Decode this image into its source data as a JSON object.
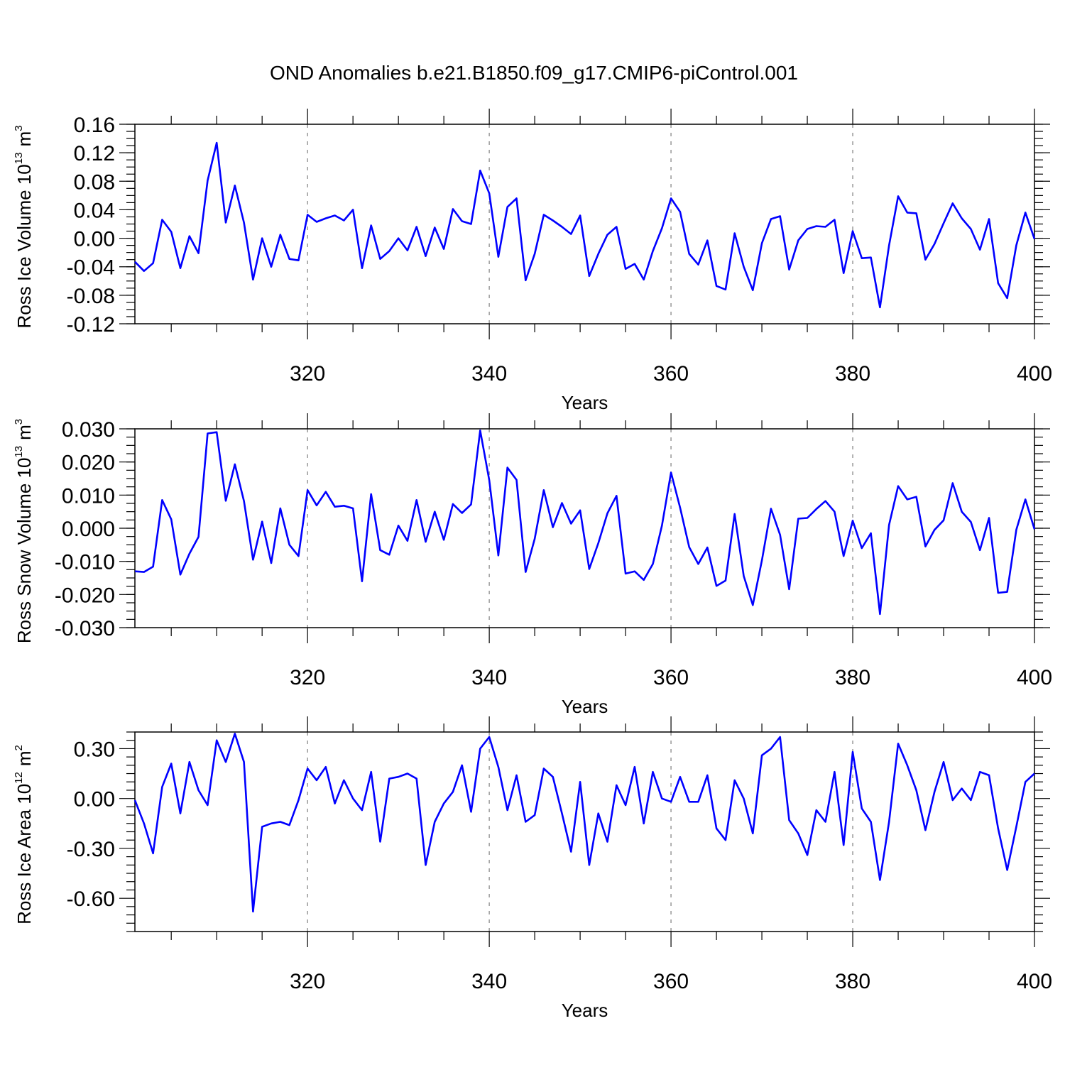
{
  "figure": {
    "title": "OND Anomalies b.e21.B1850.f09_g17.CMIP6-piControl.001",
    "line_color": "#0000ff"
  },
  "chart_data": [
    {
      "type": "line",
      "ylabel": "Ross Ice Volume 10",
      "ylabel_exp": "13",
      "ylabel_unit": "m",
      "ylabel_unit_exp": "3",
      "xlabel": "Years",
      "xlim": [
        301,
        400
      ],
      "ylim": [
        -0.12,
        0.16
      ],
      "yticks": [
        -0.12,
        -0.08,
        -0.04,
        0.0,
        0.04,
        0.08,
        0.12,
        0.16
      ],
      "ytick_labels": [
        "-0.12",
        "-0.08",
        "-0.04",
        "0.00",
        "0.04",
        "0.08",
        "0.12",
        "0.16"
      ],
      "xticks": [
        320,
        340,
        360,
        380,
        400
      ],
      "xtick_labels": [
        "320",
        "340",
        "360",
        "380",
        "400"
      ],
      "grid_x": [
        320,
        340,
        360,
        380
      ],
      "x_start": 301,
      "series": [
        {
          "name": "Ross Ice Volume",
          "values": [
            -0.033,
            -0.046,
            -0.035,
            0.026,
            0.009,
            -0.042,
            0.003,
            -0.021,
            0.081,
            0.134,
            0.022,
            0.074,
            0.022,
            -0.058,
            0.0,
            -0.04,
            0.005,
            -0.029,
            -0.031,
            0.033,
            0.023,
            0.028,
            0.032,
            0.025,
            0.04,
            -0.042,
            0.018,
            -0.029,
            -0.018,
            0.0,
            -0.017,
            0.016,
            -0.025,
            0.015,
            -0.015,
            0.041,
            0.024,
            0.02,
            0.095,
            0.063,
            -0.026,
            0.044,
            0.056,
            -0.059,
            -0.022,
            0.033,
            0.025,
            0.016,
            0.006,
            0.032,
            -0.053,
            -0.022,
            0.005,
            0.016,
            -0.043,
            -0.036,
            -0.058,
            -0.018,
            0.014,
            0.056,
            0.037,
            -0.022,
            -0.037,
            -0.003,
            -0.067,
            -0.072,
            0.007,
            -0.04,
            -0.073,
            -0.007,
            0.027,
            0.031,
            -0.044,
            -0.003,
            0.013,
            0.017,
            0.016,
            0.026,
            -0.049,
            0.01,
            -0.028,
            -0.027,
            -0.097,
            -0.01,
            0.059,
            0.036,
            0.035,
            -0.03,
            -0.008,
            0.021,
            0.049,
            0.028,
            0.013,
            -0.016,
            0.027,
            -0.063,
            -0.084,
            -0.01,
            0.036,
            -0.001
          ]
        }
      ]
    },
    {
      "type": "line",
      "ylabel": "Ross Snow Volume 10",
      "ylabel_exp": "13",
      "ylabel_unit": "m",
      "ylabel_unit_exp": "3",
      "xlabel": "Years",
      "xlim": [
        301,
        400
      ],
      "ylim": [
        -0.03,
        0.03
      ],
      "yticks": [
        -0.03,
        -0.02,
        -0.01,
        0.0,
        0.01,
        0.02,
        0.03
      ],
      "ytick_labels": [
        "-0.030",
        "-0.020",
        "-0.010",
        "0.000",
        "0.010",
        "0.020",
        "0.030"
      ],
      "xticks": [
        320,
        340,
        360,
        380,
        400
      ],
      "xtick_labels": [
        "320",
        "340",
        "360",
        "380",
        "400"
      ],
      "grid_x": [
        320,
        340,
        360,
        380
      ],
      "x_start": 301,
      "series": [
        {
          "name": "Ross Snow Volume",
          "values": [
            -0.013,
            -0.0132,
            -0.0116,
            0.0085,
            0.0027,
            -0.014,
            -0.0077,
            -0.0026,
            0.0286,
            0.029,
            0.0083,
            0.0193,
            0.0082,
            -0.0095,
            0.002,
            -0.0105,
            0.006,
            -0.005,
            -0.0084,
            0.0115,
            0.0069,
            0.011,
            0.0065,
            0.0068,
            0.006,
            -0.016,
            0.0103,
            -0.0066,
            -0.008,
            0.0008,
            -0.0038,
            0.0085,
            -0.0041,
            0.005,
            -0.0035,
            0.0073,
            0.0046,
            0.0072,
            0.0295,
            0.0145,
            -0.0082,
            0.0183,
            0.0146,
            -0.0132,
            -0.0032,
            0.0115,
            0.0003,
            0.0076,
            0.0014,
            0.0054,
            -0.0123,
            -0.0045,
            0.0045,
            0.0098,
            -0.0137,
            -0.013,
            -0.0156,
            -0.0108,
            0.0008,
            0.0168,
            0.0062,
            -0.0057,
            -0.0108,
            -0.0058,
            -0.0174,
            -0.0158,
            0.0043,
            -0.0144,
            -0.0232,
            -0.0097,
            0.0059,
            -0.002,
            -0.0184,
            0.0029,
            0.0031,
            0.0058,
            0.0082,
            0.005,
            -0.0084,
            0.0023,
            -0.006,
            -0.0015,
            -0.0259,
            0.001,
            0.0127,
            0.0087,
            0.0095,
            -0.0055,
            -0.0005,
            0.0024,
            0.0136,
            0.005,
            0.0019,
            -0.0066,
            0.0031,
            -0.0195,
            -0.0192,
            -0.0005,
            0.0087,
            -0.0003
          ]
        }
      ]
    },
    {
      "type": "line",
      "ylabel": "Ross Ice Area 10",
      "ylabel_exp": "12",
      "ylabel_unit": "m",
      "ylabel_unit_exp": "2",
      "xlabel": "Years",
      "xlim": [
        301,
        400
      ],
      "ylim": [
        -0.8,
        0.4
      ],
      "yticks": [
        -0.6,
        -0.3,
        0.0,
        0.3
      ],
      "ytick_labels": [
        "-0.60",
        "-0.30",
        "0.00",
        "0.30"
      ],
      "minor_yticks": [
        -0.8,
        -0.75,
        -0.7,
        -0.65,
        -0.55,
        -0.5,
        -0.45,
        -0.4,
        -0.35,
        -0.25,
        -0.2,
        -0.15,
        -0.1,
        -0.05,
        0.05,
        0.1,
        0.15,
        0.2,
        0.25,
        0.35,
        0.4
      ],
      "xticks": [
        320,
        340,
        360,
        380,
        400
      ],
      "xtick_labels": [
        "320",
        "340",
        "360",
        "380",
        "400"
      ],
      "grid_x": [
        320,
        340,
        360,
        380
      ],
      "x_start": 301,
      "series": [
        {
          "name": "Ross Ice Area",
          "values": [
            -0.01,
            -0.15,
            -0.33,
            0.07,
            0.21,
            -0.09,
            0.22,
            0.05,
            -0.04,
            0.35,
            0.22,
            0.39,
            0.22,
            -0.68,
            -0.17,
            -0.15,
            -0.14,
            -0.16,
            -0.01,
            0.18,
            0.11,
            0.19,
            -0.03,
            0.11,
            0.0,
            -0.07,
            0.16,
            -0.26,
            0.12,
            0.13,
            0.15,
            0.12,
            -0.4,
            -0.14,
            -0.03,
            0.04,
            0.2,
            -0.08,
            0.3,
            0.37,
            0.19,
            -0.07,
            0.14,
            -0.14,
            -0.1,
            0.18,
            0.13,
            -0.09,
            -0.32,
            0.1,
            -0.4,
            -0.09,
            -0.26,
            0.08,
            -0.04,
            0.19,
            -0.15,
            0.16,
            0.0,
            -0.02,
            0.13,
            -0.02,
            -0.02,
            0.14,
            -0.18,
            -0.25,
            0.11,
            0.0,
            -0.21,
            0.26,
            0.3,
            0.37,
            -0.13,
            -0.21,
            -0.34,
            -0.07,
            -0.14,
            0.16,
            -0.28,
            0.28,
            -0.06,
            -0.14,
            -0.49,
            -0.14,
            0.33,
            0.2,
            0.05,
            -0.19,
            0.04,
            0.22,
            -0.01,
            0.06,
            -0.01,
            0.16,
            0.14,
            -0.18,
            -0.43,
            -0.17,
            0.1,
            0.15
          ]
        }
      ]
    }
  ]
}
